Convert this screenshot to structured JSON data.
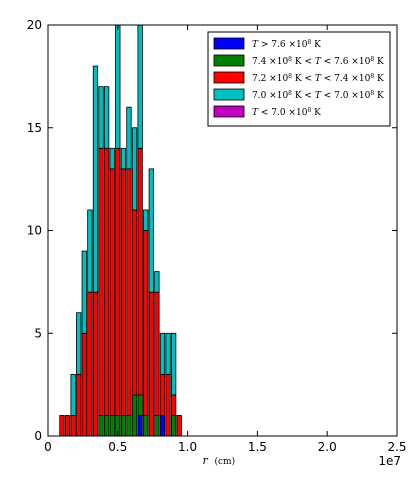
{
  "chart_data": {
    "type": "bar",
    "stacked": true,
    "histogram": true,
    "bin_width": 2000000,
    "x_bins": [
      1000000,
      1400000,
      1800000,
      2200000,
      2600000,
      3000000,
      3400000,
      3800000,
      4200000,
      4600000,
      5000000,
      5400000,
      5800000,
      6200000,
      6600000,
      7000000,
      7400000,
      7800000,
      8200000,
      8600000,
      9000000,
      9400000
    ],
    "series": [
      {
        "name": "T > 7.6×10^8 K",
        "label_parts": [
          "T",
          " > 7.6 ×10",
          "8",
          " K"
        ],
        "color": "#0000ff",
        "values": [
          0,
          0,
          0,
          0,
          0,
          0,
          0,
          0,
          0,
          0,
          0,
          0,
          0,
          0,
          1,
          0,
          0,
          0,
          1,
          0,
          0,
          0
        ]
      },
      {
        "name": "7.4×10^8 K < T < 7.6×10^8 K",
        "label_parts": [
          "7.4 ×10",
          "8",
          " K < ",
          "T",
          " < 7.6 ×10",
          "8",
          " K"
        ],
        "color": "#008000",
        "values": [
          0,
          0,
          0,
          0,
          0,
          0,
          0,
          1,
          1,
          1,
          1,
          1,
          1,
          2,
          1,
          1,
          0,
          1,
          0,
          0,
          1,
          0
        ]
      },
      {
        "name": "7.2×10^8 K < T < 7.4×10^8 K",
        "label_parts": [
          "7.2 ×10",
          "8",
          " K < ",
          "T",
          " < 7.4 ×10",
          "8",
          " K"
        ],
        "color": "#ff0000",
        "values": [
          1,
          1,
          1,
          3,
          5,
          7,
          7,
          13,
          13,
          12,
          13,
          12,
          12,
          9,
          12,
          9,
          7,
          6,
          2,
          3,
          1,
          1
        ]
      },
      {
        "name": "7.0×10^8 K < T < 7.0×10^8 K",
        "label_parts": [
          "7.0 ×10",
          "8",
          " K < ",
          "T",
          " < 7.0 ×10",
          "8",
          " K"
        ],
        "color": "#00bfbf",
        "values": [
          0,
          0,
          2,
          3,
          4,
          4,
          11,
          3,
          3,
          1,
          6,
          1,
          3,
          4,
          6,
          1,
          6,
          1,
          2,
          2,
          3,
          0
        ]
      },
      {
        "name": "T < 7.0×10^8 K",
        "label_parts": [
          "T",
          " < 7.0 ×10",
          "8",
          " K"
        ],
        "color": "#bf00bf",
        "values": [
          0,
          0,
          0,
          0,
          0,
          0,
          0,
          0,
          0,
          0,
          0,
          0,
          0,
          0,
          0,
          0,
          0,
          0,
          0,
          0,
          0,
          0
        ]
      }
    ],
    "xlim": [
      0,
      25000000
    ],
    "ylim": [
      0,
      20
    ],
    "xticks": [
      0,
      5000000,
      10000000,
      15000000,
      20000000,
      25000000
    ],
    "xtick_labels": [
      "0",
      "0.5",
      "1.0",
      "1.5",
      "2.0",
      "2.5"
    ],
    "yticks": [
      0,
      5,
      10,
      15,
      20
    ],
    "ytick_labels": [
      "0",
      "5",
      "10",
      "15",
      "20"
    ],
    "x_offset_label": "1e7",
    "xlabel_symbol": "r",
    "xlabel_unit": "(cm)",
    "ylabel": "",
    "title": "",
    "legend_position": "top-right",
    "grid": false
  }
}
